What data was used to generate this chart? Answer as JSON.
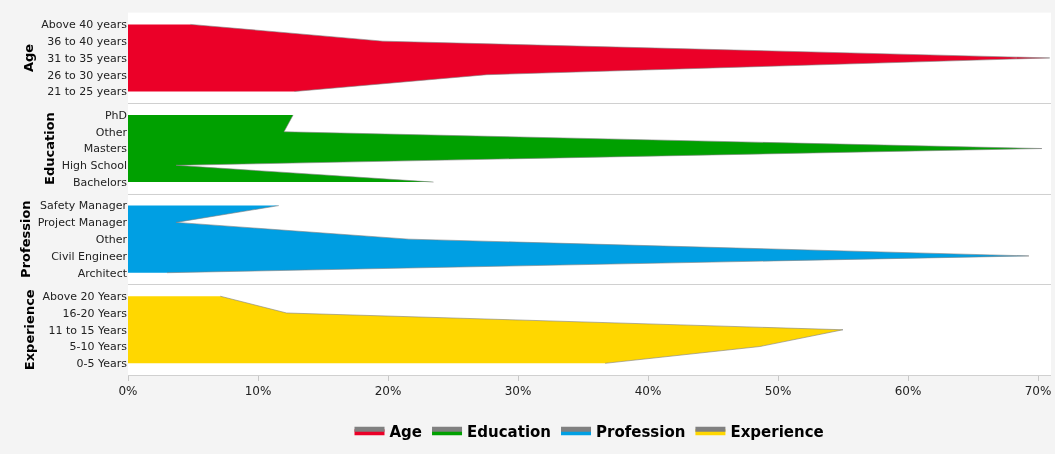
{
  "chart_data": [
    {
      "type": "area",
      "orientation": "horizontal",
      "ylabel": "Age",
      "categories": [
        "Above 40 years",
        "36 to 40 years",
        "31 to 35 years",
        "26 to 30 years",
        "21 to 25 years"
      ],
      "series": [
        {
          "name": "Age",
          "color": "#eb0028",
          "values": [
            4.8,
            19.6,
            70.9,
            27.6,
            12.8
          ]
        }
      ],
      "xlim": [
        0,
        71
      ],
      "tick_labels": "y",
      "legend": "bottom"
    },
    {
      "type": "area",
      "orientation": "horizontal",
      "ylabel": "Education",
      "categories": [
        "PhD",
        "Other",
        "Masters",
        "High School",
        "Bachelors"
      ],
      "series": [
        {
          "name": "Education",
          "color": "#00a000",
          "values": [
            12.7,
            12,
            70.3,
            3.7,
            23.5
          ]
        }
      ],
      "xlim": [
        0,
        71
      ],
      "tick_labels": "y",
      "legend": "bottom"
    },
    {
      "type": "area",
      "orientation": "horizontal",
      "ylabel": "Profession",
      "categories": [
        "Safety Manager",
        "Project Manager",
        "Other",
        "Civil Engineer",
        "Architect"
      ],
      "series": [
        {
          "name": "Profession",
          "color": "#009fe3",
          "values": [
            11.6,
            3.7,
            21.6,
            69.3,
            3
          ]
        }
      ],
      "xlim": [
        0,
        71
      ],
      "tick_labels": "y",
      "legend": "bottom"
    },
    {
      "type": "area",
      "orientation": "horizontal",
      "ylabel": "Experience",
      "categories": [
        "Above 20 Years",
        "16-20 Years",
        "11 to 15 Years",
        "5-10 Years",
        "0-5 Years"
      ],
      "series": [
        {
          "name": "Experience",
          "color": "#ffd700",
          "values": [
            7.1,
            12.2,
            55,
            48.6,
            36.7
          ]
        }
      ],
      "xlim": [
        0,
        71
      ],
      "xticks": [
        {
          "value": 0,
          "label": "0%"
        },
        {
          "value": 10,
          "label": "10%"
        },
        {
          "value": 20,
          "label": "20%"
        },
        {
          "value": 30,
          "label": "30%"
        },
        {
          "value": 40,
          "label": "40%"
        },
        {
          "value": 50,
          "label": "50%"
        },
        {
          "value": 60,
          "label": "60%"
        },
        {
          "value": 70,
          "label": "70%"
        }
      ],
      "legend": "bottom"
    }
  ]
}
